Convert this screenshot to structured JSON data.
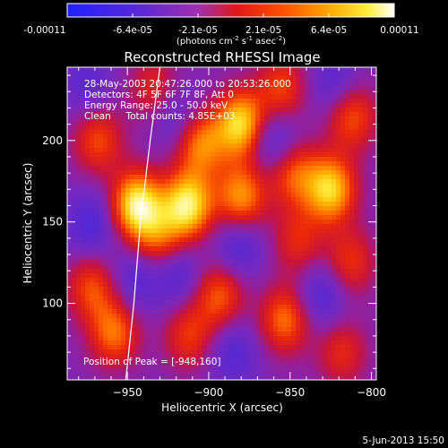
{
  "colorbar": {
    "tick_labels": [
      "-0.00011",
      "-6.4e-05",
      "-2.1e-05",
      "2.1e-05",
      "6.4e-05",
      "0.00011"
    ],
    "units_main": "(photons cm",
    "units_exp1": "-2",
    "units_mid": " s",
    "units_exp2": "-1",
    "units_tail": " asec",
    "units_exp3": "-2",
    "units_close": ")"
  },
  "chart_data": {
    "type": "heatmap",
    "title": "Reconstructed RHESSI Image",
    "xlabel": "Heliocentric X (arcsec)",
    "ylabel": "Heliocentric Y (arcsec)",
    "xlim": [
      -987,
      -797
    ],
    "ylim": [
      53,
      245
    ],
    "x_ticks": [
      -950,
      -900,
      -850,
      -800
    ],
    "y_ticks": [
      100,
      150,
      200
    ],
    "colorscale": "rhessi-fire: blue-purple-red-orange-yellow-white",
    "value_range": [
      -0.00011,
      0.00011
    ],
    "info_lines": [
      "28-May-2003 20:47:26.000 to 20:53:26.000",
      "Detectors: 4F 5F 6F 7F 8F, Att 0",
      "Energy Range: 25.0 - 50.0 keV",
      "Clean     Total counts: 4.85E+03"
    ],
    "peak_label": "Position of Peak = [-948,160]",
    "peak": [
      -948,
      160
    ],
    "limb_points": [
      [
        -951,
        53
      ],
      [
        -946,
        100
      ],
      [
        -942,
        150
      ],
      [
        -936,
        200
      ],
      [
        -930,
        245
      ]
    ],
    "blobs": [
      {
        "x": -944,
        "y": 160,
        "v": 1.0
      },
      {
        "x": -913,
        "y": 160,
        "v": 0.95
      },
      {
        "x": -880,
        "y": 210,
        "v": 0.9
      },
      {
        "x": -905,
        "y": 198,
        "v": 0.65
      },
      {
        "x": -880,
        "y": 165,
        "v": 0.7
      },
      {
        "x": -848,
        "y": 180,
        "v": 0.55
      },
      {
        "x": -825,
        "y": 170,
        "v": 0.85
      },
      {
        "x": -812,
        "y": 215,
        "v": 0.55
      },
      {
        "x": -968,
        "y": 200,
        "v": 0.5
      },
      {
        "x": -972,
        "y": 110,
        "v": 0.5
      },
      {
        "x": -958,
        "y": 82,
        "v": 0.6
      },
      {
        "x": -930,
        "y": 138,
        "v": 0.5
      },
      {
        "x": -893,
        "y": 105,
        "v": 0.55
      },
      {
        "x": -912,
        "y": 80,
        "v": 0.45
      },
      {
        "x": -853,
        "y": 90,
        "v": 0.6
      },
      {
        "x": -813,
        "y": 125,
        "v": 0.45
      },
      {
        "x": -818,
        "y": 70,
        "v": 0.4
      },
      {
        "x": -845,
        "y": 138,
        "v": 0.4
      },
      {
        "x": -855,
        "y": 232,
        "v": 0.5
      },
      {
        "x": -933,
        "y": 232,
        "v": 0.4
      },
      {
        "x": -972,
        "y": 148,
        "v": -0.35
      },
      {
        "x": -920,
        "y": 120,
        "v": -0.35
      },
      {
        "x": -882,
        "y": 135,
        "v": -0.35
      },
      {
        "x": -860,
        "y": 200,
        "v": -0.4
      },
      {
        "x": -920,
        "y": 215,
        "v": -0.3
      },
      {
        "x": -830,
        "y": 105,
        "v": -0.35
      },
      {
        "x": -945,
        "y": 115,
        "v": -0.3
      },
      {
        "x": -885,
        "y": 70,
        "v": -0.3
      },
      {
        "x": -822,
        "y": 235,
        "v": -0.3
      },
      {
        "x": -975,
        "y": 235,
        "v": -0.25
      }
    ]
  },
  "footer": {
    "date": "5-Jun-2013 15:50"
  }
}
